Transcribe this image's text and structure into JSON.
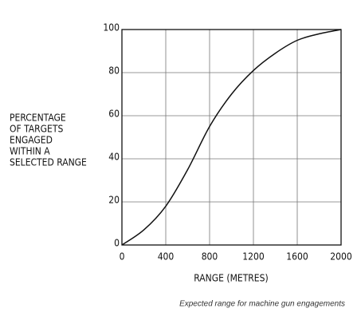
{
  "chart_data": {
    "type": "line",
    "ylabel": [
      "PERCENTAGE",
      "OF TARGETS",
      "ENGAGED",
      "WITHIN A",
      "SELECTED RANGE"
    ],
    "xlabel": "RANGE (METRES)",
    "caption": "Expected range for machine gun engagements",
    "x": [
      0,
      200,
      400,
      600,
      800,
      1000,
      1200,
      1400,
      1600,
      1800,
      2000
    ],
    "series": [
      {
        "color": "#111111",
        "values": [
          0,
          7,
          18,
          35,
          55,
          70,
          81,
          89,
          95,
          98,
          100
        ]
      }
    ],
    "xlim": [
      0,
      2000
    ],
    "xticks": [
      0,
      400,
      800,
      1200,
      1600,
      2000
    ],
    "ylim": [
      0,
      100
    ],
    "yticks": [
      0,
      20,
      40,
      60,
      80,
      100
    ],
    "grid": true
  }
}
